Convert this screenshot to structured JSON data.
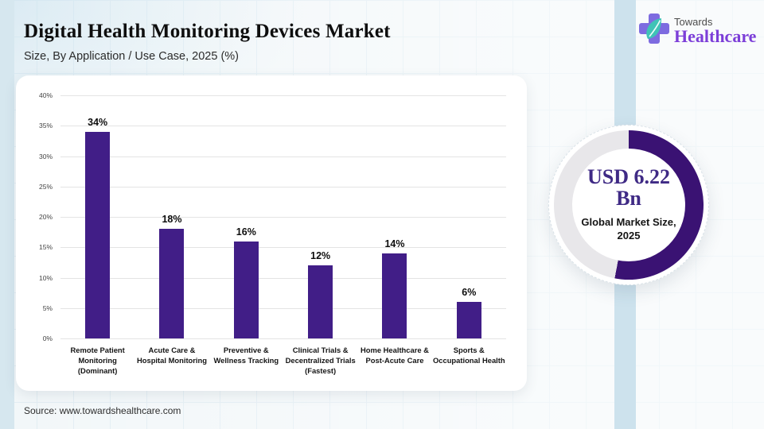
{
  "header": {
    "title": "Digital Health Monitoring Devices Market",
    "subtitle": "Size, By Application / Use Case, 2025 (%)"
  },
  "logo": {
    "top": "Towards",
    "bottom": "Healthcare"
  },
  "chart_data": {
    "type": "bar",
    "title": "Digital Health Monitoring Devices Market",
    "subtitle": "Size, By Application / Use Case, 2025 (%)",
    "categories": [
      "Remote Patient Monitoring (Dominant)",
      "Acute Care & Hospital Monitoring",
      "Preventive & Wellness Tracking",
      "Clinical Trials & Decentralized Trials (Fastest)",
      "Home Healthcare & Post-Acute Care",
      "Sports & Occupational Health"
    ],
    "values": [
      34,
      18,
      16,
      12,
      14,
      6
    ],
    "value_labels": [
      "34%",
      "18%",
      "16%",
      "12%",
      "14%",
      "6%"
    ],
    "ylim": [
      0,
      40
    ],
    "yticks": [
      0,
      5,
      10,
      15,
      20,
      25,
      30,
      35,
      40
    ],
    "ytick_suffix": "%",
    "grid": true,
    "legend": "none",
    "bar_color": "#411e87"
  },
  "donut": {
    "percent_filled": 53,
    "arc_color": "#3a1273",
    "track_color": "#e8e7ea",
    "value_line1": "USD 6.22",
    "value_line2": "Bn",
    "caption": "Global Market Size, 2025"
  },
  "source": {
    "text": "Source: www.towardshealthcare.com"
  },
  "colors": {
    "background": "#f2f7f9",
    "stripe": "#cde2ed",
    "card": "#ffffff",
    "bar": "#411e87",
    "donut_arc": "#3a1273",
    "logo_purple": "#7c3ed8",
    "logo_cross": "#7d6be0",
    "logo_leaf": "#3fc3b6"
  }
}
